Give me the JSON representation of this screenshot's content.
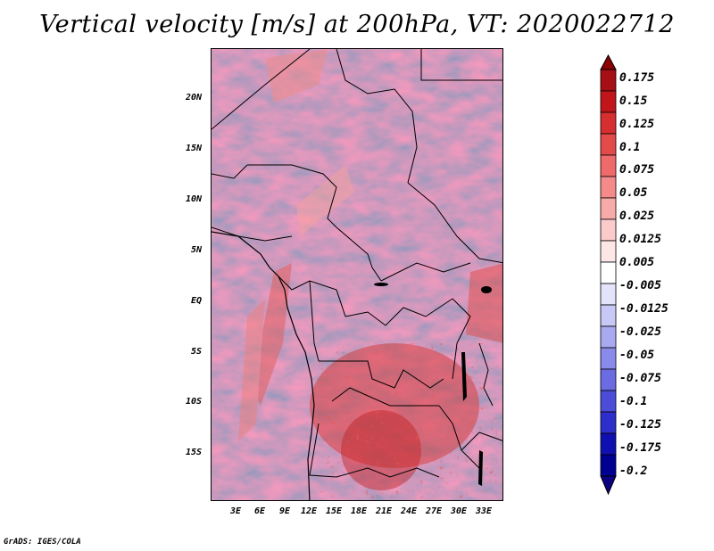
{
  "title": "Vertical velocity [m/s] at 200hPa, VT: 2020022712",
  "credit": "GrADS: IGES/COLA",
  "map": {
    "lat_ticks": [
      "20N",
      "15N",
      "10N",
      "5N",
      "EQ",
      "5S",
      "10S",
      "15S"
    ],
    "lon_ticks": [
      "3E",
      "6E",
      "9E",
      "12E",
      "15E",
      "18E",
      "21E",
      "24E",
      "27E",
      "30E",
      "33E"
    ],
    "features": [
      "coastline",
      "country-borders",
      "lakes"
    ]
  },
  "colorbar": {
    "labels": [
      "0.175",
      "0.15",
      "0.125",
      "0.1",
      "0.075",
      "0.05",
      "0.025",
      "0.0125",
      "0.005",
      "-0.005",
      "-0.0125",
      "-0.025",
      "-0.05",
      "-0.075",
      "-0.1",
      "-0.125",
      "-0.175",
      "-0.2"
    ],
    "colors": [
      "#a50f15",
      "#c0161b",
      "#d62f2f",
      "#e34a4a",
      "#ef6a6a",
      "#f48a8a",
      "#f7aaaa",
      "#fbcbcb",
      "#fde6e6",
      "#ffffff",
      "#e3e3fb",
      "#c8c8f6",
      "#a9a9f0",
      "#8a8aea",
      "#6b6be2",
      "#4c4cd8",
      "#2e2ecc",
      "#1010b0",
      "#000090"
    ],
    "arrow_top_color": "#8b0000",
    "arrow_bottom_color": "#0b0080"
  }
}
